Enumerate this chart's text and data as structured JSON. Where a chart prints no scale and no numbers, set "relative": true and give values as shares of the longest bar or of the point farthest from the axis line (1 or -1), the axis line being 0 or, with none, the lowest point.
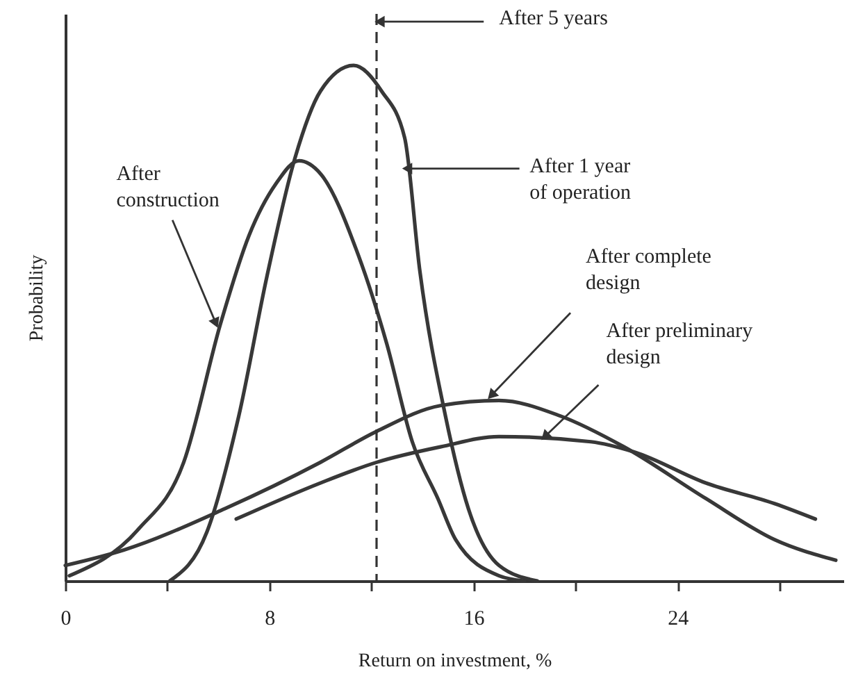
{
  "chart_data": {
    "type": "line",
    "relative": true,
    "xlabel": "Return on investment, %",
    "ylabel": "Probability",
    "xlim": [
      0,
      30.5
    ],
    "xticks": [
      0,
      {
        "value": 4,
        "label": null
      },
      8,
      {
        "value": 12,
        "label": null
      },
      16,
      {
        "value": 20,
        "label": null
      },
      24,
      {
        "value": 28,
        "label": null
      }
    ],
    "series": [
      {
        "color": "#383838",
        "x": [
          0.16,
          2.86,
          4.64,
          6.09,
          7.2,
          8.25,
          9.16,
          10.0,
          11.5,
          12.6,
          13.6,
          14.6,
          15.3,
          17.0,
          18.0
        ],
        "values": [
          0.01,
          0.1,
          0.23,
          0.5,
          0.67,
          0.77,
          0.815,
          0.79,
          0.63,
          0.46,
          0.27,
          0.16,
          0.08,
          0.01,
          0
        ]
      },
      {
        "color": "#383838",
        "x": [
          4.1,
          5.55,
          6.8,
          7.9,
          9.0,
          10.0,
          11.3,
          12.4,
          13.3,
          13.9,
          14.9,
          15.8,
          17.0,
          18.5
        ],
        "values": [
          0,
          0.095,
          0.32,
          0.59,
          0.82,
          0.95,
          1,
          0.95,
          0.86,
          0.6,
          0.32,
          0.14,
          0.03,
          0
        ]
      },
      {
        "color": "#383838",
        "x": [
          0,
          2.3,
          6.25,
          10.0,
          12.2,
          14.7,
          17.0,
          19.4,
          21.9,
          25.1,
          27.8,
          30.2
        ],
        "values": [
          0.03,
          0.06,
          0.14,
          0.23,
          0.29,
          0.34,
          0.35,
          0.32,
          0.26,
          0.16,
          0.08,
          0.04
        ]
      },
      {
        "color": "#383838",
        "x": [
          6.7,
          10.0,
          12.2,
          14.7,
          17.0,
          20.6,
          22.3,
          25.1,
          27.8,
          29.4
        ],
        "values": [
          0.12,
          0.19,
          0.23,
          0.26,
          0.28,
          0.27,
          0.25,
          0.19,
          0.15,
          0.12
        ]
      }
    ],
    "ref_lines": [
      {
        "axis": "x",
        "value": 12.2,
        "label": "After 5 years",
        "line_style": "dashed"
      }
    ],
    "annotations": [
      {
        "text": "After\nconstruction",
        "x": 5.9,
        "y": 0.5
      },
      {
        "text": "After 1 year\nof operation",
        "x": 13.4,
        "y": 0.8
      },
      {
        "text": "After complete\ndesign",
        "x": 16.7,
        "y": 0.36
      },
      {
        "text": "After preliminary\ndesign",
        "x": 18.8,
        "y": 0.28
      }
    ]
  }
}
